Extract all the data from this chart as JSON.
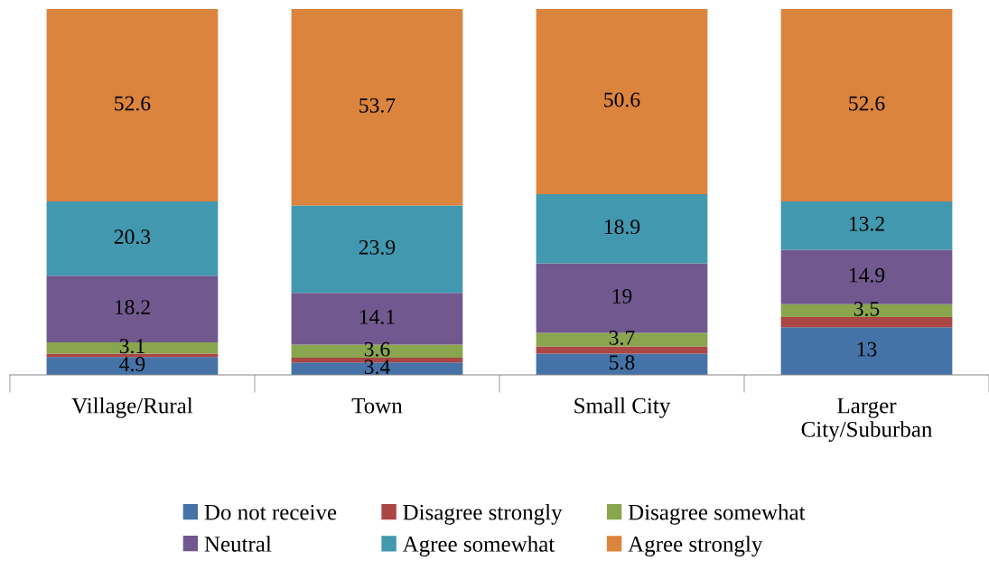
{
  "chart_data": {
    "type": "bar",
    "stacked": true,
    "categories": [
      "Village/Rural",
      "Town",
      "Small City",
      "Larger\nCity/Suburban"
    ],
    "ylim": [
      0,
      100
    ],
    "tick_labels": "x",
    "grid": false,
    "legend": "bottom",
    "series": [
      {
        "name": "Do not receive",
        "color": "#4572a7",
        "values": [
          4.9,
          3.4,
          5.8,
          13
        ],
        "value_labels": [
          "4.9",
          "3.4",
          "5.8",
          "13"
        ]
      },
      {
        "name": "Disagree strongly",
        "color": "#aa4643",
        "values": [
          0.9,
          1.3,
          2.0,
          2.8
        ],
        "value_labels": [
          null,
          null,
          null,
          null
        ]
      },
      {
        "name": "Disagree somewhat",
        "color": "#89a54e",
        "values": [
          3.1,
          3.6,
          3.7,
          3.5
        ],
        "value_labels": [
          "3.1",
          "3.6",
          "3.7",
          "3.5"
        ]
      },
      {
        "name": "Neutral",
        "color": "#71588f",
        "values": [
          18.2,
          14.1,
          19,
          14.9
        ],
        "value_labels": [
          "18.2",
          "14.1",
          "19",
          "14.9"
        ]
      },
      {
        "name": "Agree somewhat",
        "color": "#4198af",
        "values": [
          20.3,
          23.9,
          18.9,
          13.2
        ],
        "value_labels": [
          "20.3",
          "23.9",
          "18.9",
          "13.2"
        ]
      },
      {
        "name": "Agree strongly",
        "color": "#db843d",
        "values": [
          52.6,
          53.7,
          50.6,
          52.6
        ],
        "value_labels": [
          "52.6",
          "53.7",
          "50.6",
          "52.6"
        ]
      }
    ]
  }
}
